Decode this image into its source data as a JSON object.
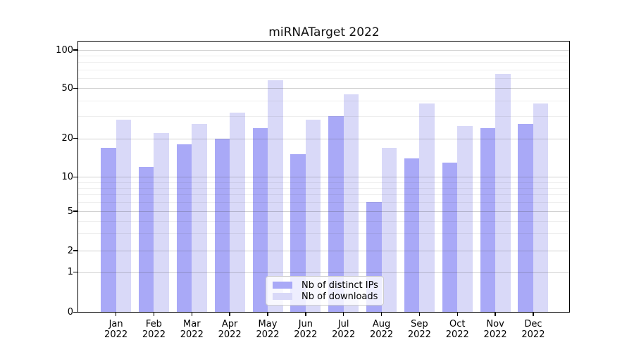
{
  "chart_data": {
    "type": "bar",
    "title": "miRNATarget 2022",
    "categories": [
      "Jan 2022",
      "Feb 2022",
      "Mar 2022",
      "Apr 2022",
      "May 2022",
      "Jun 2022",
      "Jul 2022",
      "Aug 2022",
      "Sep 2022",
      "Oct 2022",
      "Nov 2022",
      "Dec 2022"
    ],
    "series": [
      {
        "name": "Nb of distinct IPs",
        "color": "#a9a9f7",
        "values": [
          17,
          12,
          18,
          20,
          24,
          15,
          30,
          6,
          14,
          13,
          24,
          26
        ]
      },
      {
        "name": "Nb of downloads",
        "color": "#d9d9f8",
        "values": [
          28,
          22,
          26,
          32,
          58,
          28,
          45,
          17,
          38,
          25,
          65,
          38
        ]
      }
    ],
    "xlabel": "",
    "ylabel": "",
    "yscale": "log-like (linear below 1)",
    "ytick_labels": [
      0,
      1,
      2,
      5,
      10,
      20,
      50,
      100
    ],
    "yminor_gridlines": [
      3,
      4,
      6,
      7,
      8,
      9,
      30,
      40,
      60,
      70,
      80,
      90
    ],
    "ylim": [
      0,
      110
    ],
    "grid": true,
    "legend_position": "inside-bottom-center"
  }
}
